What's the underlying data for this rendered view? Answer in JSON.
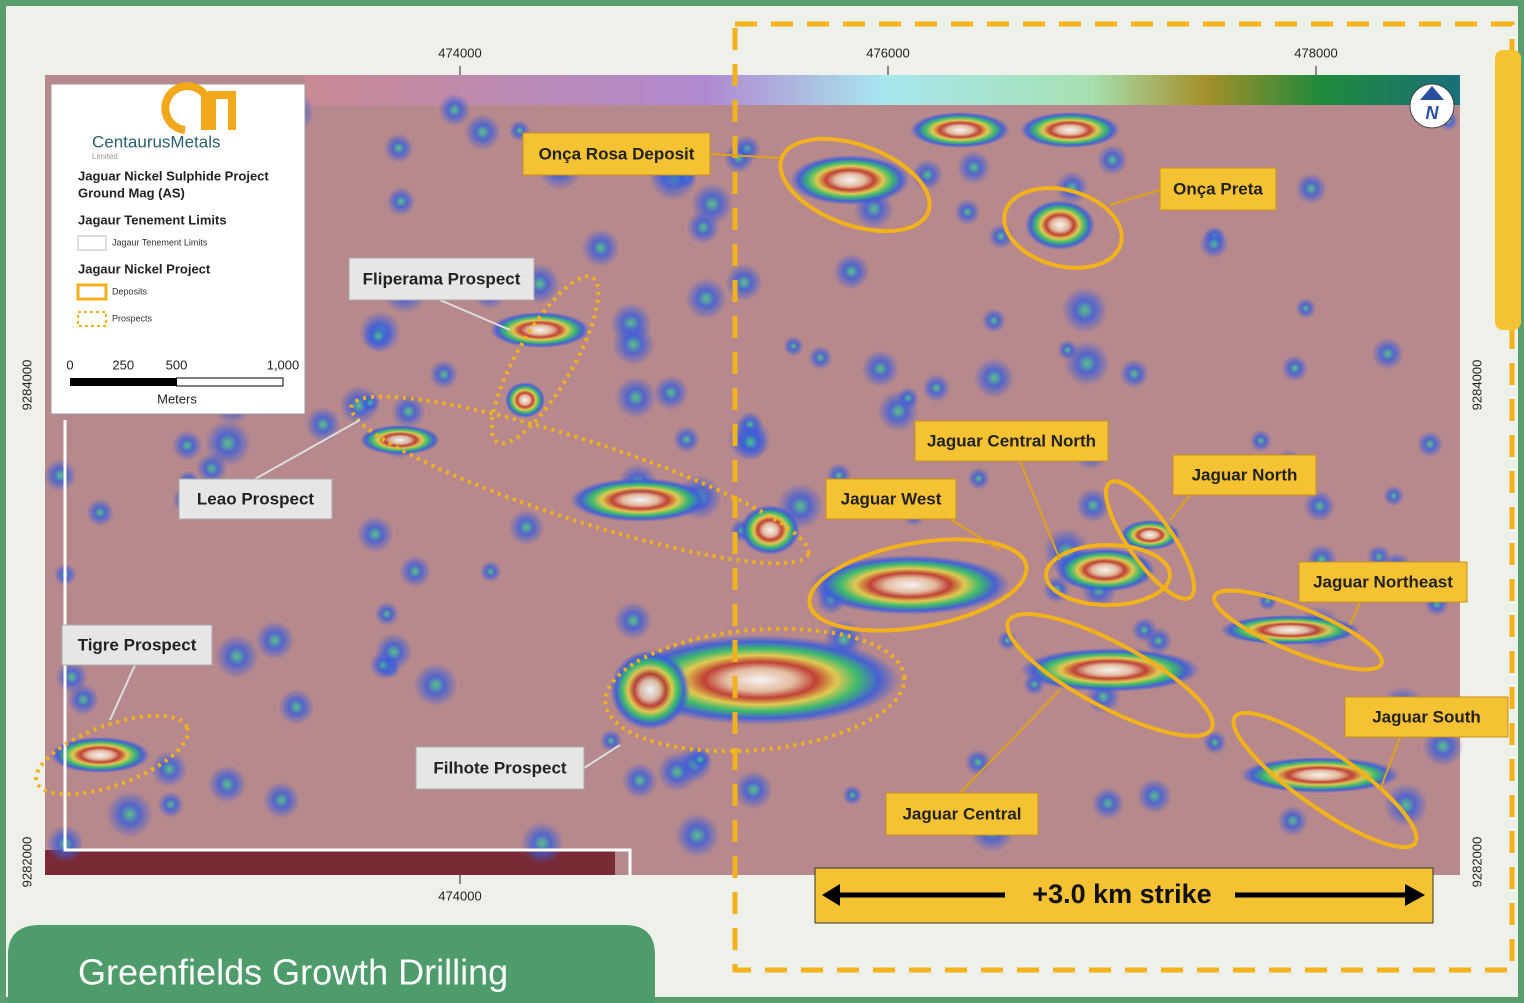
{
  "map": {
    "coordinates": {
      "top": [
        474000,
        476000,
        478000
      ],
      "bottom": [
        474000
      ],
      "left": [
        9284000,
        9282000
      ],
      "right": [
        9284000,
        9282000
      ]
    },
    "legend": {
      "logo": "CentaurusMetals",
      "logo_sub": "Limited",
      "title": "Jaguar Nickel Sulphide Project",
      "subtitle": "Ground Mag (AS)",
      "sections": [
        {
          "heading": "Jagaur Tenement Limits",
          "items": [
            "Jagaur Tenement Limits"
          ]
        },
        {
          "heading": "Jagaur Nickel Project",
          "items": [
            "Deposits",
            "Prospects"
          ]
        }
      ],
      "scale": {
        "ticks": [
          0,
          250,
          500,
          {
            "value": 1000,
            "label": "1,000"
          }
        ],
        "unit": "Meters"
      }
    },
    "labels": [
      {
        "text": "Onça Rosa Deposit",
        "kind": "deposit"
      },
      {
        "text": "Onça Preta",
        "kind": "deposit"
      },
      {
        "text": "Fliperama Prospect",
        "kind": "prospect"
      },
      {
        "text": "Leao Prospect",
        "kind": "prospect"
      },
      {
        "text": "Tigre Prospect",
        "kind": "prospect"
      },
      {
        "text": "Filhote Prospect",
        "kind": "prospect"
      },
      {
        "text": "Jaguar Central North",
        "kind": "deposit"
      },
      {
        "text": "Jaguar North",
        "kind": "deposit"
      },
      {
        "text": "Jaguar West",
        "kind": "deposit"
      },
      {
        "text": "Jaguar Northeast",
        "kind": "deposit"
      },
      {
        "text": "Jaguar South",
        "kind": "deposit"
      },
      {
        "text": "Jaguar Central",
        "kind": "deposit"
      }
    ],
    "strike": "+3.0 km strike",
    "north": "N"
  },
  "footer": "Greenfields Growth Drilling"
}
